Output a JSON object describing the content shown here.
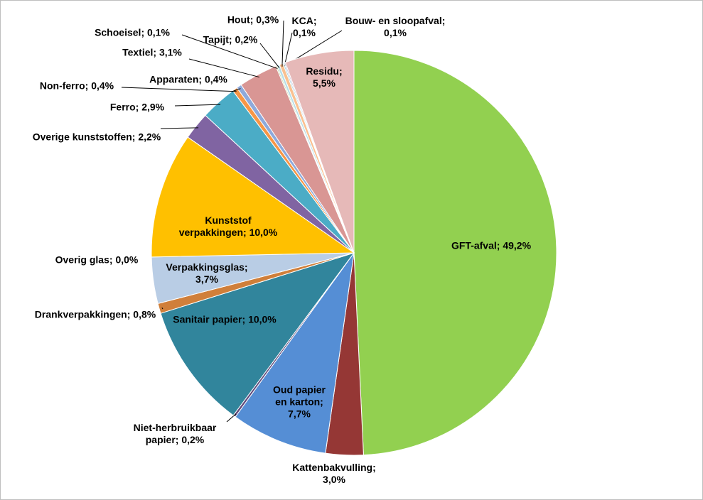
{
  "chart_data": {
    "type": "pie",
    "categories": [
      "GFT-afval",
      "Kattenbakvulling",
      "Oud papier en karton",
      "Niet-herbruikbaar papier",
      "Sanitair papier",
      "Drankverpakkingen",
      "Overig glas",
      "Verpakkingsglas",
      "Kunststof verpakkingen",
      "Overige kunststoffen",
      "Ferro",
      "Non-ferro",
      "Apparaten",
      "Textiel",
      "Schoeisel",
      "Tapijt",
      "Hout",
      "KCA",
      "Bouw- en sloopafval",
      "Residu"
    ],
    "values": [
      49.2,
      3.0,
      7.7,
      0.2,
      10.0,
      0.8,
      0.0,
      3.7,
      10.0,
      2.2,
      2.9,
      0.4,
      0.4,
      3.1,
      0.1,
      0.2,
      0.3,
      0.1,
      0.1,
      5.5
    ],
    "value_labels": [
      "49,2%",
      "3,0%",
      "7,7%",
      "0,2%",
      "10,0%",
      "0,8%",
      "0,0%",
      "3,7%",
      "10,0%",
      "2,2%",
      "2,9%",
      "0,4%",
      "0,4%",
      "3,1%",
      "0,1%",
      "0,2%",
      "0,3%",
      "0,1%",
      "0,1%",
      "5,5%"
    ],
    "label_separator": "; ",
    "colors": [
      "#92d050",
      "#953735",
      "#558ed5",
      "#604a7b",
      "#31859c",
      "#d07f3a",
      "#4f81bd",
      "#b9cde5",
      "#ffc000",
      "#8064a2",
      "#4bacc6",
      "#f79646",
      "#8ea9db",
      "#d99694",
      "#c3d69b",
      "#b7dee8",
      "#fac090",
      "#93cddd",
      "#ccc1da",
      "#e6b9b8"
    ]
  }
}
